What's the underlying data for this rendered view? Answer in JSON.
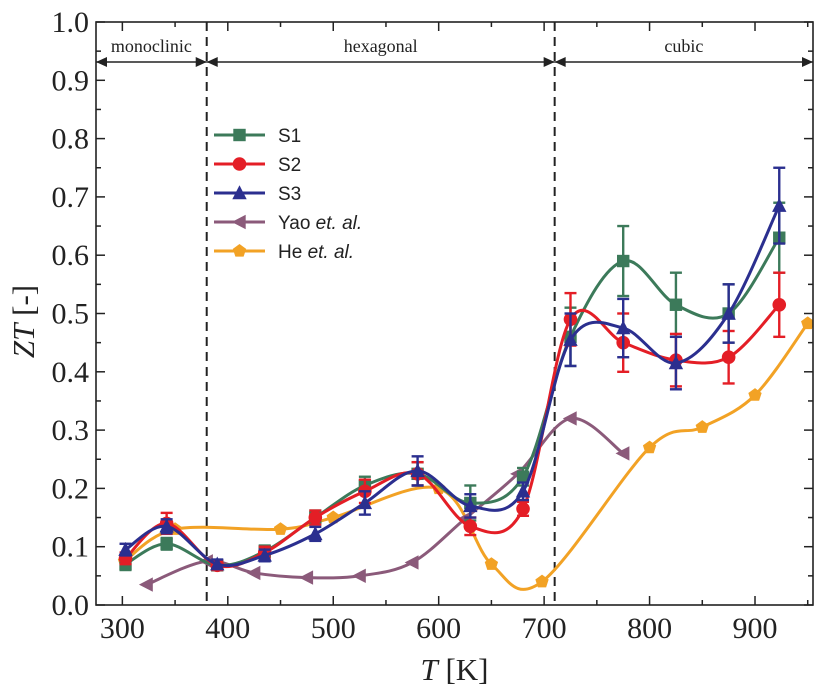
{
  "chart_data": {
    "type": "line",
    "xlabel": {
      "var": "T",
      "unit": " [K]"
    },
    "ylabel": {
      "var": "ZT",
      "unit": " [-]"
    },
    "xlim": [
      275,
      955
    ],
    "ylim": [
      0.0,
      1.0
    ],
    "xticks": [
      300,
      400,
      500,
      600,
      700,
      800,
      900
    ],
    "yticks": [
      "0.0",
      "0.1",
      "0.2",
      "0.3",
      "0.4",
      "0.5",
      "0.6",
      "0.7",
      "0.8",
      "0.9",
      "1.0"
    ],
    "phase_boundaries": [
      380,
      710
    ],
    "phases": [
      {
        "label": "monoclinic",
        "from": 275,
        "to": 380
      },
      {
        "label": "hexagonal",
        "from": 380,
        "to": 710
      },
      {
        "label": "cubic",
        "from": 710,
        "to": 955
      }
    ],
    "series": [
      {
        "name": "S1",
        "italic_suffix": "",
        "color": "#3c7a5a",
        "marker": "square",
        "errorbars": true,
        "x": [
          303,
          342,
          390,
          435,
          483,
          530,
          580,
          630,
          680,
          725,
          775,
          825,
          875,
          923
        ],
        "y": [
          0.07,
          0.105,
          0.068,
          0.092,
          0.15,
          0.205,
          0.225,
          0.175,
          0.22,
          0.46,
          0.59,
          0.515,
          0.5,
          0.63
        ],
        "err": [
          0.01,
          0.01,
          0.008,
          0.01,
          0.012,
          0.015,
          0.02,
          0.03,
          0.015,
          0.05,
          0.06,
          0.055,
          0.05,
          0.06
        ]
      },
      {
        "name": "S2",
        "italic_suffix": "",
        "color": "#e41e26",
        "marker": "circle",
        "errorbars": true,
        "x": [
          303,
          342,
          390,
          435,
          483,
          530,
          580,
          630,
          680,
          725,
          775,
          825,
          875,
          923
        ],
        "y": [
          0.08,
          0.14,
          0.068,
          0.09,
          0.15,
          0.195,
          0.225,
          0.135,
          0.165,
          0.49,
          0.45,
          0.42,
          0.425,
          0.515
        ],
        "err": [
          0.01,
          0.018,
          0.008,
          0.01,
          0.012,
          0.02,
          0.02,
          0.015,
          0.012,
          0.045,
          0.05,
          0.045,
          0.045,
          0.055
        ]
      },
      {
        "name": "S3",
        "italic_suffix": "",
        "color": "#2b2f8f",
        "marker": "triangle",
        "errorbars": true,
        "x": [
          303,
          342,
          390,
          435,
          483,
          530,
          580,
          630,
          680,
          725,
          775,
          825,
          875,
          923
        ],
        "y": [
          0.095,
          0.135,
          0.07,
          0.085,
          0.122,
          0.175,
          0.23,
          0.17,
          0.195,
          0.455,
          0.475,
          0.415,
          0.5,
          0.685
        ],
        "err": [
          0.01,
          0.012,
          0.008,
          0.01,
          0.012,
          0.02,
          0.025,
          0.02,
          0.015,
          0.045,
          0.05,
          0.045,
          0.05,
          0.065
        ]
      },
      {
        "name": "Yao",
        "italic_suffix": " et. al.",
        "color": "#8b5a7a",
        "marker": "triangle-left",
        "errorbars": false,
        "x": [
          323,
          380,
          425,
          475,
          525,
          575,
          625,
          675,
          725,
          775
        ],
        "y": [
          0.035,
          0.075,
          0.055,
          0.047,
          0.05,
          0.073,
          0.148,
          0.225,
          0.32,
          0.26
        ],
        "err": []
      },
      {
        "name": "He",
        "italic_suffix": " et. al.",
        "color": "#f2a225",
        "marker": "pentagon",
        "errorbars": false,
        "x": [
          302,
          350,
          450,
          500,
          600,
          650,
          698,
          800,
          850,
          900,
          950
        ],
        "y": [
          0.075,
          0.13,
          0.13,
          0.15,
          0.2,
          0.07,
          0.04,
          0.27,
          0.305,
          0.36,
          0.483
        ],
        "err": []
      }
    ]
  }
}
